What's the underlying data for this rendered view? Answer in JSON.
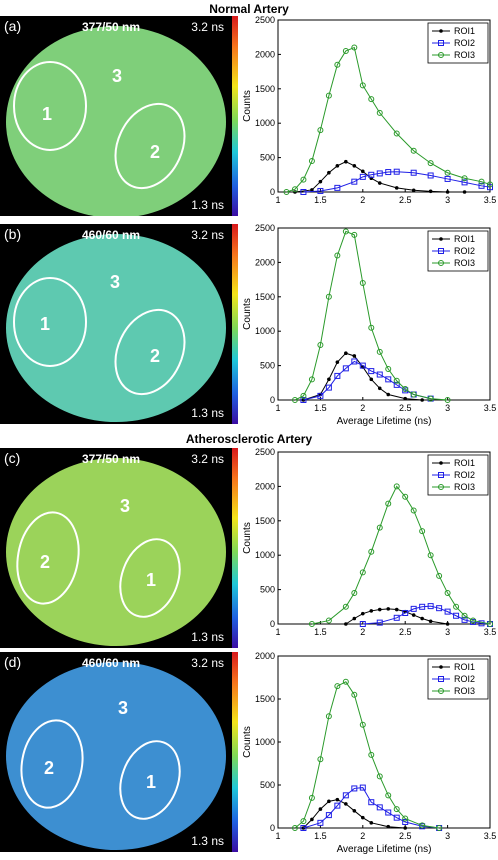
{
  "figure": {
    "section_normal": "Normal Artery",
    "section_athero": "Atherosclerotic Artery"
  },
  "panels": [
    {
      "letter": "(a)",
      "filter": "377/50 nm",
      "max": "3.2 ns",
      "min": "1.3 ns",
      "roi_labels": [
        "1",
        "2",
        "3"
      ],
      "tint": "#7fcf7a"
    },
    {
      "letter": "(b)",
      "filter": "460/60 nm",
      "max": "3.2 ns",
      "min": "1.3 ns",
      "roi_labels": [
        "1",
        "2",
        "3"
      ],
      "tint": "#5ec9b0"
    },
    {
      "letter": "(c)",
      "filter": "377/50 nm",
      "max": "3.2 ns",
      "min": "1.3 ns",
      "roi_labels": [
        "2",
        "1",
        "3"
      ],
      "tint": "#9bd35a"
    },
    {
      "letter": "(d)",
      "filter": "460/60 nm",
      "max": "3.2 ns",
      "min": "1.3 ns",
      "roi_labels": [
        "2",
        "1",
        "3"
      ],
      "tint": "#3d8fd1"
    }
  ],
  "colors": {
    "roi1": "#000000",
    "roi2": "#1f1fe6",
    "roi3": "#2a9a2a"
  },
  "chart_data": [
    {
      "type": "line",
      "ylabel": "Counts",
      "xlabel": "",
      "xlim": [
        1,
        3.5
      ],
      "ylim": [
        0,
        2500
      ],
      "xticks": [
        1,
        1.5,
        2,
        2.5,
        3,
        3.5
      ],
      "yticks": [
        0,
        500,
        1000,
        1500,
        2000,
        2500
      ],
      "legend": "top-right",
      "series": [
        {
          "name": "ROI1",
          "marker": "dot",
          "x": [
            1.2,
            1.4,
            1.5,
            1.6,
            1.7,
            1.8,
            1.9,
            2.0,
            2.1,
            2.2,
            2.4,
            2.6,
            2.8,
            3.0,
            3.2
          ],
          "y": [
            0,
            30,
            150,
            280,
            380,
            440,
            380,
            300,
            200,
            130,
            60,
            25,
            10,
            0,
            0
          ]
        },
        {
          "name": "ROI2",
          "marker": "square",
          "x": [
            1.3,
            1.5,
            1.7,
            1.9,
            2.0,
            2.1,
            2.2,
            2.3,
            2.4,
            2.6,
            2.8,
            3.0,
            3.2,
            3.4,
            3.5
          ],
          "y": [
            0,
            15,
            60,
            150,
            220,
            250,
            270,
            290,
            295,
            280,
            240,
            190,
            140,
            90,
            70
          ]
        },
        {
          "name": "ROI3",
          "marker": "circle",
          "x": [
            1.1,
            1.2,
            1.3,
            1.4,
            1.5,
            1.6,
            1.7,
            1.8,
            1.9,
            2.0,
            2.1,
            2.2,
            2.4,
            2.6,
            2.8,
            3.0,
            3.2,
            3.4,
            3.5
          ],
          "y": [
            0,
            40,
            180,
            450,
            900,
            1400,
            1850,
            2050,
            2100,
            1550,
            1350,
            1150,
            850,
            600,
            420,
            280,
            200,
            150,
            110
          ]
        }
      ]
    },
    {
      "type": "line",
      "ylabel": "Counts",
      "xlabel": "Average Lifetime (ns)",
      "xlim": [
        1,
        3.5
      ],
      "ylim": [
        0,
        2500
      ],
      "xticks": [
        1,
        1.5,
        2,
        2.5,
        3,
        3.5
      ],
      "yticks": [
        0,
        500,
        1000,
        1500,
        2000,
        2500
      ],
      "legend": "top-right",
      "series": [
        {
          "name": "ROI1",
          "marker": "dot",
          "x": [
            1.3,
            1.5,
            1.6,
            1.7,
            1.8,
            1.9,
            2.0,
            2.1,
            2.2,
            2.3,
            2.5,
            2.7
          ],
          "y": [
            0,
            80,
            300,
            550,
            680,
            640,
            480,
            300,
            170,
            80,
            20,
            0
          ]
        },
        {
          "name": "ROI2",
          "marker": "square",
          "x": [
            1.3,
            1.5,
            1.6,
            1.7,
            1.8,
            1.9,
            2.0,
            2.1,
            2.2,
            2.3,
            2.4,
            2.5,
            2.6,
            2.8
          ],
          "y": [
            0,
            60,
            180,
            350,
            460,
            560,
            500,
            420,
            370,
            300,
            220,
            140,
            80,
            20
          ]
        },
        {
          "name": "ROI3",
          "marker": "circle",
          "x": [
            1.2,
            1.3,
            1.4,
            1.5,
            1.6,
            1.7,
            1.8,
            1.9,
            2.0,
            2.1,
            2.2,
            2.3,
            2.4,
            2.5,
            2.6,
            2.8,
            3.0
          ],
          "y": [
            0,
            60,
            300,
            800,
            1500,
            2100,
            2450,
            2400,
            1700,
            1050,
            700,
            450,
            280,
            160,
            80,
            20,
            0
          ]
        }
      ]
    },
    {
      "type": "line",
      "ylabel": "Counts",
      "xlabel": "",
      "xlim": [
        1,
        3.5
      ],
      "ylim": [
        0,
        2500
      ],
      "xticks": [
        1,
        1.5,
        2,
        2.5,
        3,
        3.5
      ],
      "yticks": [
        0,
        500,
        1000,
        1500,
        2000,
        2500
      ],
      "legend": "top-right",
      "series": [
        {
          "name": "ROI1",
          "marker": "dot",
          "x": [
            1.8,
            1.9,
            2.0,
            2.1,
            2.2,
            2.3,
            2.4,
            2.5,
            2.6,
            2.7,
            2.8,
            3.0
          ],
          "y": [
            0,
            80,
            150,
            190,
            210,
            220,
            210,
            180,
            130,
            80,
            40,
            0
          ]
        },
        {
          "name": "ROI2",
          "marker": "square",
          "x": [
            2.0,
            2.2,
            2.4,
            2.5,
            2.6,
            2.7,
            2.8,
            2.9,
            3.0,
            3.1,
            3.2,
            3.3,
            3.4,
            3.5
          ],
          "y": [
            0,
            20,
            90,
            160,
            220,
            250,
            260,
            230,
            180,
            120,
            60,
            30,
            10,
            0
          ]
        },
        {
          "name": "ROI3",
          "marker": "circle",
          "x": [
            1.4,
            1.6,
            1.8,
            1.9,
            2.0,
            2.1,
            2.2,
            2.3,
            2.4,
            2.5,
            2.6,
            2.7,
            2.8,
            2.9,
            3.0,
            3.1,
            3.2,
            3.3,
            3.5
          ],
          "y": [
            0,
            50,
            250,
            450,
            750,
            1050,
            1400,
            1750,
            2000,
            1850,
            1650,
            1350,
            1000,
            700,
            450,
            250,
            120,
            50,
            0
          ]
        }
      ]
    },
    {
      "type": "line",
      "ylabel": "Counts",
      "xlabel": "Average Lifetime (ns)",
      "xlim": [
        1,
        3.5
      ],
      "ylim": [
        0,
        2000
      ],
      "xticks": [
        1,
        1.5,
        2,
        2.5,
        3,
        3.5
      ],
      "yticks": [
        0,
        500,
        1000,
        1500,
        2000
      ],
      "legend": "top-right",
      "series": [
        {
          "name": "ROI1",
          "marker": "dot",
          "x": [
            1.3,
            1.4,
            1.5,
            1.6,
            1.7,
            1.8,
            1.9,
            2.0,
            2.1,
            2.3,
            2.5
          ],
          "y": [
            0,
            100,
            220,
            310,
            330,
            280,
            200,
            120,
            60,
            15,
            0
          ]
        },
        {
          "name": "ROI2",
          "marker": "square",
          "x": [
            1.3,
            1.5,
            1.6,
            1.7,
            1.8,
            1.9,
            2.0,
            2.1,
            2.2,
            2.3,
            2.4,
            2.5,
            2.7,
            2.9
          ],
          "y": [
            0,
            60,
            150,
            260,
            380,
            460,
            470,
            300,
            240,
            180,
            120,
            70,
            20,
            0
          ]
        },
        {
          "name": "ROI3",
          "marker": "circle",
          "x": [
            1.2,
            1.3,
            1.4,
            1.5,
            1.6,
            1.7,
            1.8,
            1.9,
            2.0,
            2.1,
            2.2,
            2.3,
            2.4,
            2.5,
            2.7,
            2.9
          ],
          "y": [
            0,
            80,
            350,
            800,
            1300,
            1650,
            1700,
            1550,
            1200,
            850,
            600,
            380,
            220,
            110,
            30,
            0
          ]
        }
      ]
    }
  ]
}
